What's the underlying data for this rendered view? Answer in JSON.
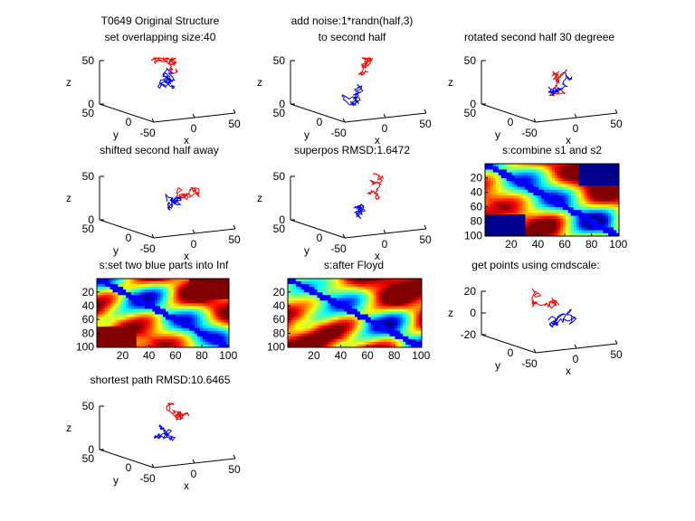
{
  "figure": {
    "background": "#ffffff",
    "colors": {
      "first_half": "#ff0000",
      "second_half": "#0000ff",
      "axis": "#000000"
    }
  },
  "chart_data": [
    {
      "id": "p1",
      "type": "line3d",
      "title": [
        "T0649 Original Structure",
        "set overlapping size:40"
      ],
      "xlabel": "x",
      "ylabel": "y",
      "zlabel": "z",
      "xticks": [
        "-50",
        "0",
        "50"
      ],
      "yticks": [
        "50"
      ],
      "zticks": [
        "0",
        "50"
      ],
      "series": [
        {
          "color": "#ff0000",
          "seed": 11,
          "steps": 60,
          "spread": 1.0
        },
        {
          "color": "#0000ff",
          "seed": 12,
          "steps": 60,
          "spread": 1.0
        }
      ]
    },
    {
      "id": "p2",
      "type": "line3d",
      "title": [
        "add noise:1*randn(half,3)",
        "to second half"
      ],
      "xlabel": "x",
      "ylabel": "y",
      "zlabel": "z",
      "xticks": [
        "-50",
        "0",
        "50"
      ],
      "yticks": [
        "50"
      ],
      "zticks": [
        "0",
        "50"
      ],
      "series": [
        {
          "color": "#ff0000",
          "seed": 21,
          "steps": 60,
          "spread": 0.8
        },
        {
          "color": "#0000ff",
          "seed": 22,
          "steps": 60,
          "spread": 0.8
        }
      ]
    },
    {
      "id": "p3",
      "type": "line3d",
      "title": [
        "rotated second half 30 degreee"
      ],
      "xlabel": "x",
      "ylabel": "y",
      "zlabel": "z",
      "xticks": [
        "-50",
        "0",
        "50"
      ],
      "yticks": [
        "50"
      ],
      "zticks": [
        "0",
        "50"
      ],
      "series": [
        {
          "color": "#ff0000",
          "seed": 31,
          "steps": 60,
          "spread": 0.8
        },
        {
          "color": "#0000ff",
          "seed": 32,
          "steps": 60,
          "spread": 0.8
        }
      ]
    },
    {
      "id": "p4",
      "type": "line3d",
      "title": [
        "shifted second half away"
      ],
      "xlabel": "x",
      "ylabel": "y",
      "zlabel": "z",
      "xticks": [
        "-50",
        "0",
        "50"
      ],
      "yticks": [
        "50"
      ],
      "zticks": [
        "0",
        "50"
      ],
      "series": [
        {
          "color": "#ff0000",
          "seed": 41,
          "steps": 60,
          "spread": 0.8
        },
        {
          "color": "#0000ff",
          "seed": 42,
          "steps": 60,
          "spread": 0.8
        }
      ]
    },
    {
      "id": "p5",
      "type": "line3d",
      "title": [
        "superpos RMSD:1.6472"
      ],
      "xlabel": "x",
      "ylabel": "y",
      "zlabel": "z",
      "xticks": [
        "-50",
        "0",
        "50"
      ],
      "yticks": [
        "50"
      ],
      "zticks": [
        "0",
        "50"
      ],
      "series": [
        {
          "color": "#ff0000",
          "seed": 51,
          "steps": 60,
          "spread": 0.7
        },
        {
          "color": "#0000ff",
          "seed": 52,
          "steps": 60,
          "spread": 0.7
        }
      ]
    },
    {
      "id": "p6",
      "type": "heatmap",
      "title": [
        "s:combine s1 and s2"
      ],
      "xticks": [
        "20",
        "40",
        "60",
        "80",
        "100"
      ],
      "yticks": [
        "20",
        "40",
        "60",
        "80",
        "100"
      ],
      "xlim": [
        0.5,
        100.5
      ],
      "ylim": [
        0.5,
        100.5
      ],
      "blocks": [
        {
          "x": [
            70,
            100
          ],
          "y": [
            0,
            30
          ],
          "color": "#00008f"
        },
        {
          "x": [
            0,
            30
          ],
          "y": [
            70,
            100
          ],
          "color": "#00008f"
        }
      ]
    },
    {
      "id": "p7",
      "type": "heatmap",
      "title": [
        "s:set two blue parts into Inf"
      ],
      "xticks": [
        "20",
        "40",
        "60",
        "80",
        "100"
      ],
      "yticks": [
        "20",
        "40",
        "60",
        "80",
        "100"
      ],
      "xlim": [
        0.5,
        100.5
      ],
      "ylim": [
        0.5,
        100.5
      ],
      "blocks": [
        {
          "x": [
            70,
            100
          ],
          "y": [
            0,
            30
          ],
          "color": "#800000"
        },
        {
          "x": [
            0,
            30
          ],
          "y": [
            70,
            100
          ],
          "color": "#800000"
        }
      ]
    },
    {
      "id": "p8",
      "type": "heatmap",
      "title": [
        "s:after Floyd"
      ],
      "xticks": [
        "20",
        "40",
        "60",
        "80",
        "100"
      ],
      "yticks": [
        "20",
        "40",
        "60",
        "80",
        "100"
      ],
      "xlim": [
        0.5,
        100.5
      ],
      "ylim": [
        0.5,
        100.5
      ],
      "blocks": []
    },
    {
      "id": "p9",
      "type": "line3d",
      "title": [
        "get points using cmdscale:"
      ],
      "xlabel": "x",
      "ylabel": "y",
      "zlabel": "z",
      "xticks": [
        "-50",
        "0",
        "50"
      ],
      "yticks": [],
      "zticks": [
        "-20",
        "0",
        "20"
      ],
      "series": [
        {
          "color": "#ff0000",
          "seed": 91,
          "steps": 60,
          "spread": 0.9
        },
        {
          "color": "#0000ff",
          "seed": 92,
          "steps": 60,
          "spread": 0.9
        }
      ]
    },
    {
      "id": "p10",
      "type": "line3d",
      "title": [
        "shortest path RMSD:10.6465"
      ],
      "xlabel": "x",
      "ylabel": "y",
      "zlabel": "z",
      "xticks": [
        "-50",
        "0",
        "50"
      ],
      "yticks": [
        "50"
      ],
      "zticks": [
        "0",
        "50"
      ],
      "series": [
        {
          "color": "#ff0000",
          "seed": 101,
          "steps": 60,
          "spread": 0.8
        },
        {
          "color": "#0000ff",
          "seed": 102,
          "steps": 60,
          "spread": 0.8
        }
      ]
    }
  ]
}
